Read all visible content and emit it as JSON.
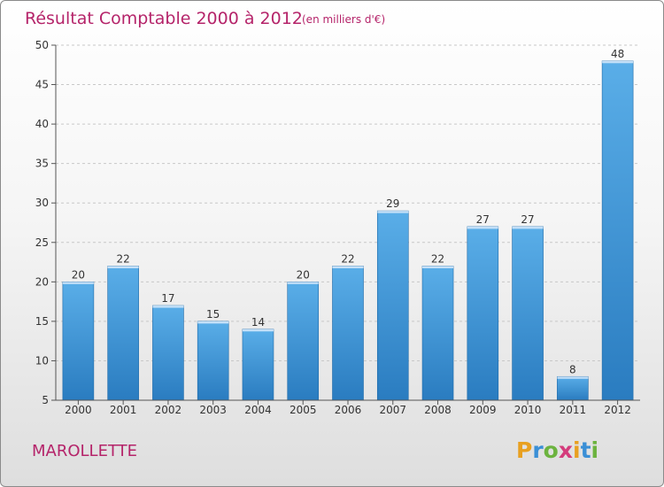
{
  "chart_data": {
    "type": "bar",
    "title": "Résultat Comptable 2000 à 2012",
    "subtitle": "(en milliers d'€)",
    "categories": [
      "2000",
      "2001",
      "2002",
      "2003",
      "2004",
      "2005",
      "2006",
      "2007",
      "2008",
      "2009",
      "2010",
      "2011",
      "2012"
    ],
    "values": [
      20,
      22,
      17,
      15,
      14,
      20,
      22,
      29,
      22,
      27,
      27,
      8,
      48
    ],
    "ylim": [
      5,
      50
    ],
    "yticks": [
      "5",
      "10",
      "15",
      "20",
      "25",
      "30",
      "35",
      "40",
      "45",
      "50"
    ],
    "xlabel": "",
    "ylabel": "",
    "grid": true,
    "bar_color": "#4a9fe0"
  },
  "commune": "MAROLLETTE",
  "brand": {
    "letters": [
      "P",
      "r",
      "o",
      "x",
      "i",
      "t",
      "i"
    ],
    "colors": [
      "#e8a020",
      "#3a8fd6",
      "#6cb33f",
      "#d43c7c",
      "#e8a020",
      "#3a8fd6",
      "#6cb33f"
    ],
    "text": "Proxiti"
  }
}
